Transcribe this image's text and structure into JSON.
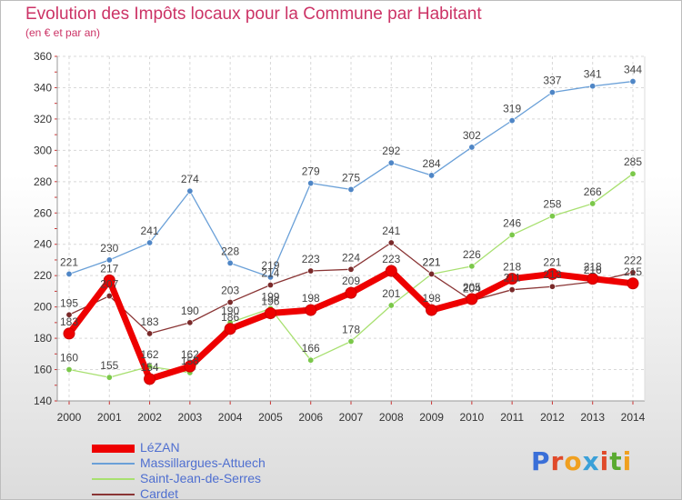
{
  "title": "Evolution des Impôts locaux pour la Commune par Habitant",
  "subtitle": "(en € et par an)",
  "logo_text": "Proxiti",
  "chart_data": {
    "type": "line",
    "title": "Evolution des Impôts locaux pour la Commune par Habitant",
    "ylabel": "(en € et par an)",
    "xlabel": "",
    "x": [
      "2000",
      "2001",
      "2002",
      "2003",
      "2004",
      "2005",
      "2006",
      "2007",
      "2008",
      "2009",
      "2010",
      "2011",
      "2012",
      "2013",
      "2014"
    ],
    "ylim": [
      140,
      360
    ],
    "yticks": [
      140,
      160,
      180,
      200,
      220,
      240,
      260,
      280,
      300,
      320,
      340,
      360
    ],
    "grid": true,
    "legend_position": "bottom-left",
    "series": [
      {
        "name": "LéZAN",
        "color": "#ee0000",
        "values": [
          183,
          217,
          154,
          162,
          186,
          196,
          198,
          209,
          223,
          198,
          205,
          218,
          221,
          218,
          215
        ],
        "labels": [
          "183",
          "217",
          "154",
          "162",
          "186",
          "196",
          "198",
          "209",
          "223",
          "198",
          "205",
          "218",
          "221",
          "218",
          "215"
        ]
      },
      {
        "name": "Massillargues-Attuech",
        "color": "#6aa0d8",
        "values": [
          221,
          230,
          241,
          274,
          228,
          219,
          279,
          275,
          292,
          284,
          302,
          319,
          337,
          341,
          344
        ],
        "labels": [
          "221",
          "230",
          "241",
          "274",
          "228",
          "219",
          "279",
          "275",
          "292",
          "284",
          "302",
          "319",
          "337",
          "341",
          "344"
        ]
      },
      {
        "name": "Saint-Jean-de-Serres",
        "color": "#a8e070",
        "values": [
          160,
          155,
          162,
          158,
          190,
          199,
          166,
          178,
          201,
          221,
          226,
          246,
          258,
          266,
          285
        ],
        "labels": [
          "160",
          "155",
          "162",
          "158",
          "190",
          "199",
          "166",
          "178",
          "201",
          "221",
          "226",
          "246",
          "258",
          "266",
          "285"
        ]
      },
      {
        "name": "Cardet",
        "color": "#8a3535",
        "values": [
          195,
          207,
          183,
          190,
          203,
          214,
          223,
          224,
          241,
          221,
          204,
          211,
          213,
          216,
          222
        ],
        "labels": [
          "195",
          "207",
          "183",
          "190",
          "203",
          "214",
          "223",
          "224",
          "241",
          "221",
          "204",
          "211",
          "213",
          "216",
          "222"
        ]
      }
    ]
  }
}
